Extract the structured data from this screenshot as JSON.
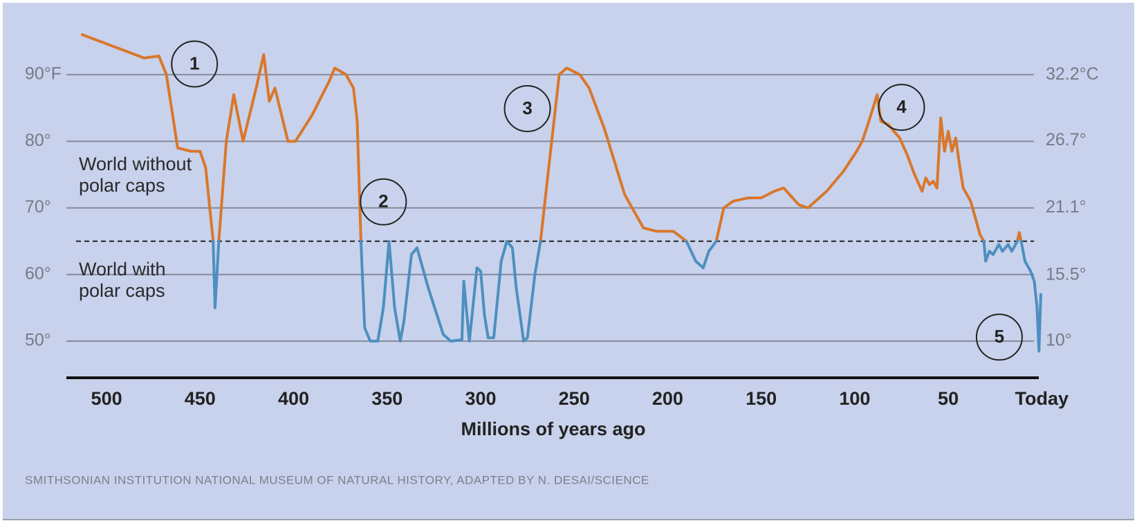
{
  "chart_data": {
    "type": "line",
    "x_label": "Millions of years ago",
    "source": "SMITHSONIAN INSTITUTION NATIONAL MUSEUM OF NATURAL HISTORY, ADAPTED BY N. DESAI/SCIENCE",
    "xlim": [
      520,
      -1
    ],
    "xticks": [
      500,
      450,
      400,
      350,
      300,
      250,
      200,
      150,
      100,
      50,
      {
        "value": 0,
        "label": "Today"
      }
    ],
    "ylim": [
      44.5,
      101
    ],
    "yticks": [
      {
        "value": 90,
        "label": "90°F"
      },
      {
        "value": 80,
        "label": "80°"
      },
      {
        "value": 70,
        "label": "70°"
      },
      {
        "value": 60,
        "label": "60°"
      },
      {
        "value": 50,
        "label": "50°"
      }
    ],
    "y2lim": [
      6.94,
      38.33
    ],
    "y2ticks": [
      {
        "value": 32.2,
        "label": "32.2°C"
      },
      {
        "value": 26.7,
        "label": "26.7°"
      },
      {
        "value": 21.1,
        "label": "21.1°"
      },
      {
        "value": 15.5,
        "label": "15.5°"
      },
      {
        "value": 10,
        "label": "10°"
      }
    ],
    "grid": true,
    "threshold_line": 65,
    "x": [
      513,
      480,
      472,
      468,
      462,
      455,
      450,
      447,
      443,
      442,
      440,
      436,
      432,
      427,
      420,
      416,
      413,
      410,
      403,
      399,
      390,
      381,
      378,
      372,
      368,
      366,
      364,
      362,
      359,
      355,
      352,
      349,
      346,
      343,
      341,
      337,
      334,
      328,
      320,
      316,
      310,
      309,
      306,
      302,
      300,
      298,
      296,
      293,
      289,
      286,
      283,
      281,
      277,
      275,
      271,
      268,
      262,
      258,
      254,
      247,
      242,
      234,
      223,
      213,
      206,
      197,
      190,
      185,
      181,
      178,
      174,
      170,
      165,
      157,
      150,
      143,
      138,
      130,
      125,
      115,
      106,
      99,
      96,
      93,
      88,
      86,
      82,
      76,
      72,
      68,
      64,
      62,
      60,
      58,
      56,
      54,
      52,
      50,
      48,
      46,
      44,
      42,
      38,
      35,
      33,
      31,
      30,
      28,
      26,
      23,
      21,
      18,
      16,
      14,
      13,
      12,
      11,
      9,
      6,
      4,
      2.5,
      1.5,
      0.5
    ],
    "series": [
      {
        "name": "World without polar caps",
        "color": "#d9772b",
        "values": [
          96,
          92.5,
          92.8,
          90,
          79,
          78.5,
          78.5,
          76,
          65,
          null,
          65,
          80,
          87,
          80,
          88,
          93,
          86,
          88,
          80,
          80,
          84,
          89,
          91,
          90,
          88,
          83,
          65,
          null,
          null,
          null,
          null,
          null,
          null,
          null,
          null,
          null,
          null,
          null,
          null,
          null,
          null,
          null,
          null,
          null,
          null,
          null,
          null,
          null,
          null,
          null,
          null,
          null,
          null,
          null,
          null,
          65,
          80,
          90,
          91,
          90,
          88,
          82,
          72,
          67,
          66.5,
          66.5,
          65,
          null,
          null,
          null,
          65,
          70,
          71,
          71.5,
          71.5,
          72.5,
          73,
          70.5,
          70,
          72.5,
          75.5,
          78.5,
          80,
          82.5,
          87,
          83,
          82.5,
          80.5,
          78,
          75,
          72.5,
          74.5,
          73.5,
          74,
          73,
          83.5,
          78.5,
          81.5,
          78.5,
          80.5,
          76.5,
          73,
          71,
          68,
          66,
          65,
          null,
          null,
          null,
          null,
          null,
          null,
          null,
          null,
          65,
          66.3,
          65,
          null,
          null,
          null,
          null,
          null,
          null
        ]
      },
      {
        "name": "World with polar caps",
        "color": "#4d8fc0",
        "values": [
          null,
          null,
          null,
          null,
          null,
          null,
          null,
          null,
          65,
          55,
          65,
          null,
          null,
          null,
          null,
          null,
          null,
          null,
          null,
          null,
          null,
          null,
          null,
          null,
          null,
          null,
          65,
          52,
          50,
          50,
          55,
          65,
          55,
          50,
          53,
          63,
          64,
          58,
          51,
          50,
          50.2,
          59,
          50,
          61,
          60.5,
          54,
          50.5,
          50.5,
          62,
          65,
          64,
          58,
          50,
          50.5,
          60,
          65,
          null,
          null,
          null,
          null,
          null,
          null,
          null,
          null,
          null,
          null,
          65,
          62,
          61,
          63.5,
          65,
          null,
          null,
          null,
          null,
          null,
          null,
          null,
          null,
          null,
          null,
          null,
          null,
          null,
          null,
          null,
          null,
          null,
          null,
          null,
          null,
          null,
          null,
          null,
          null,
          null,
          null,
          null,
          null,
          null,
          null,
          null,
          null,
          null,
          null,
          65,
          62,
          63.5,
          63,
          64.5,
          63.5,
          64.5,
          63.5,
          64.5,
          65,
          null,
          65,
          62,
          60.5,
          59,
          55,
          48.5,
          57
        ]
      }
    ],
    "annotations": [
      {
        "text": "1",
        "x": 453,
        "y": 91.6
      },
      {
        "text": "2",
        "x": 352,
        "y": 70.9
      },
      {
        "text": "3",
        "x": 275,
        "y": 84.9
      },
      {
        "text": "4",
        "x": 75,
        "y": 85.1
      },
      {
        "text": "5",
        "x": 22.7,
        "y": 50.6
      }
    ]
  }
}
